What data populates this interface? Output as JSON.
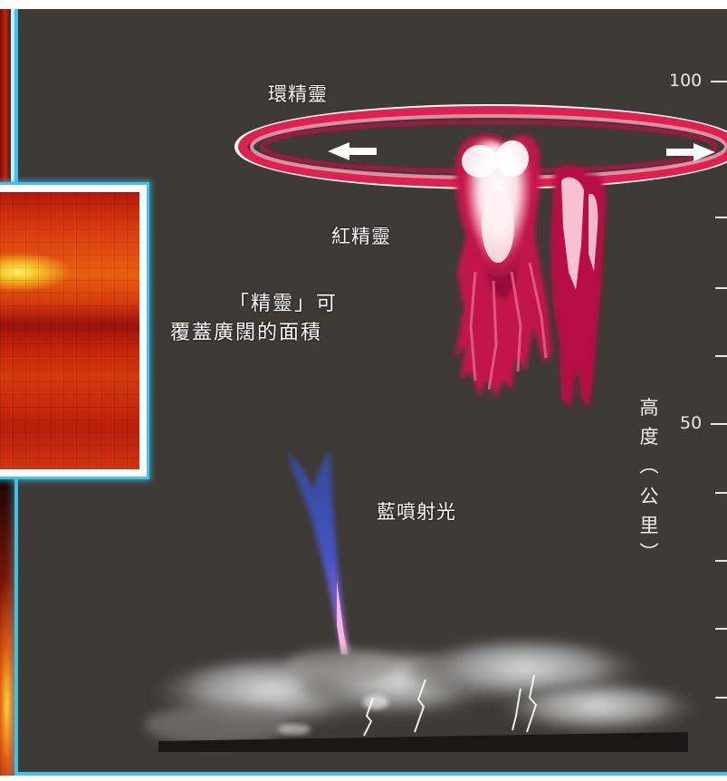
{
  "labels": {
    "elves": "環精靈",
    "red_sprite": "紅精靈",
    "note_line1": "「精靈」可",
    "note_line2": "覆蓋廣闊的面積",
    "blue_jet": "藍噴射光"
  },
  "axis": {
    "ticks": [
      "100",
      "50"
    ],
    "unit_chars": [
      "高",
      "度",
      "︵",
      "公",
      "里",
      "︶"
    ]
  },
  "colors": {
    "panel_background": "#3e3a36",
    "frame_cyan": "#3fc3e8",
    "sprite_red": "#c4124a",
    "jet_blue": "#4b55d0"
  }
}
